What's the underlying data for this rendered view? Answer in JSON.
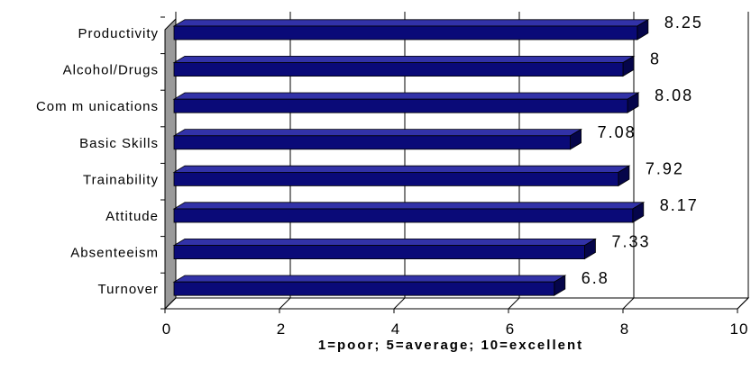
{
  "chart_data": {
    "type": "bar",
    "orientation": "horizontal",
    "categories": [
      "Productivity",
      "Alcohol/Drugs",
      "Com m unications",
      "Basic Skills",
      "Trainability",
      "Attitude",
      "Absenteeism",
      "Turnover"
    ],
    "values": [
      8.25,
      8,
      8.08,
      7.08,
      7.92,
      8.17,
      7.33,
      6.8
    ],
    "value_labels": [
      "8.25",
      "8",
      "8.08",
      "7.08",
      "7.92",
      "8.17",
      "7.33",
      "6.8"
    ],
    "xlabel": "1=poor; 5=average; 10=excellent",
    "xlim": [
      0,
      10
    ],
    "xticks": [
      0,
      2,
      4,
      6,
      8,
      10
    ],
    "xtick_labels": [
      "0",
      "2",
      "4",
      "6",
      "8",
      "10"
    ],
    "grid": "vertical major",
    "legend": "none",
    "bar_style": "3d",
    "colors": {
      "bar_front": "#0a0a78",
      "bar_top": "#3232a8",
      "bar_side": "#05054a",
      "wall": "#9a9a9a",
      "grid": "#000000"
    }
  }
}
